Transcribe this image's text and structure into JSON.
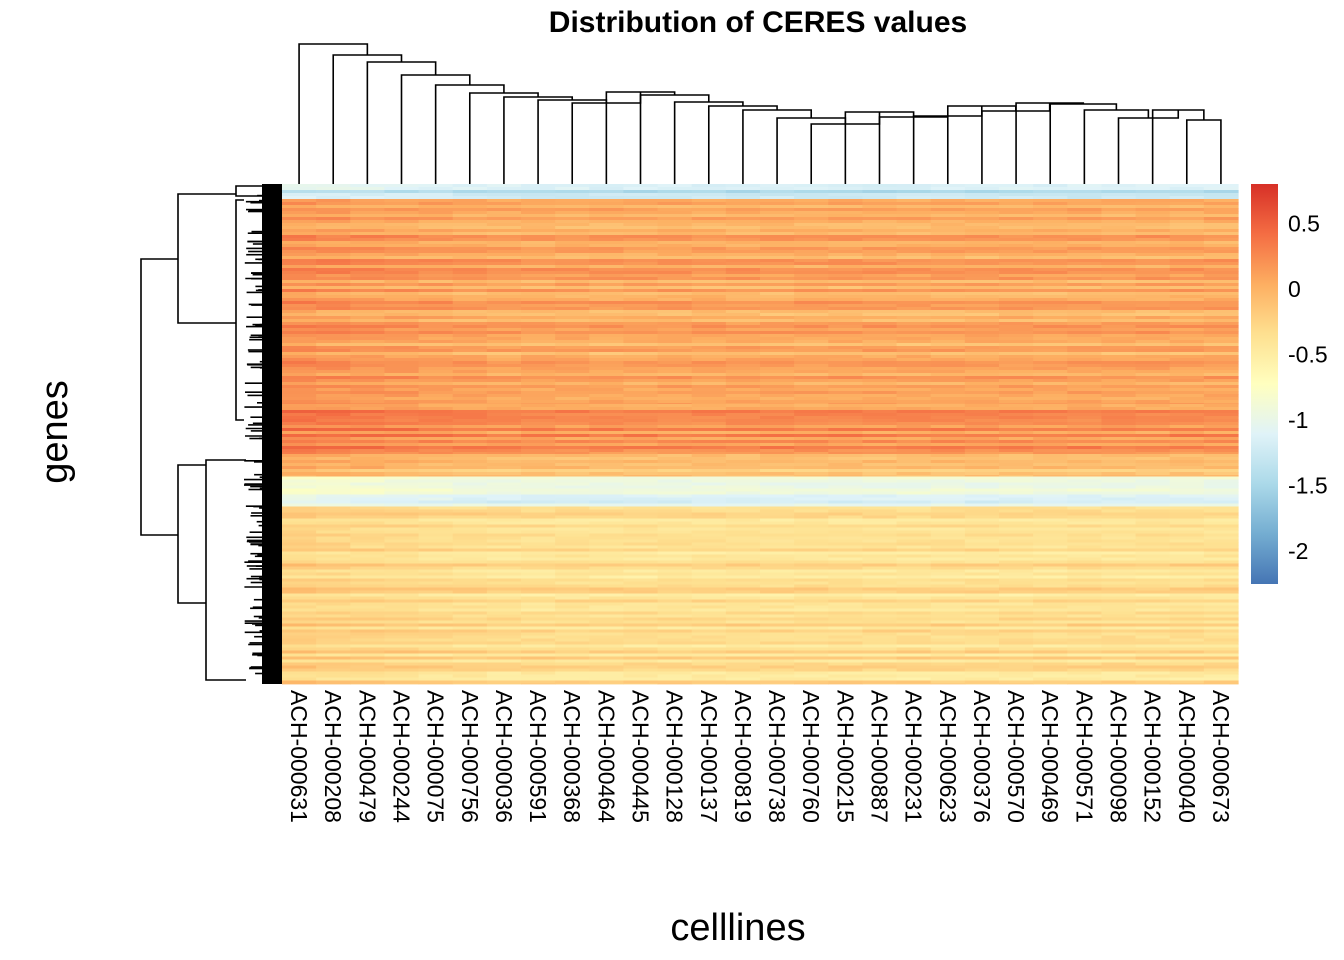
{
  "chart_data": {
    "type": "heatmap",
    "title": "Distribution of CERES values",
    "xlabel": "celllines",
    "ylabel": "genes",
    "columns": [
      "ACH-000631",
      "ACH-000208",
      "ACH-000479",
      "ACH-000244",
      "ACH-000075",
      "ACH-000756",
      "ACH-000036",
      "ACH-000591",
      "ACH-000368",
      "ACH-000464",
      "ACH-000445",
      "ACH-000128",
      "ACH-000137",
      "ACH-000819",
      "ACH-000738",
      "ACH-000760",
      "ACH-000215",
      "ACH-000887",
      "ACH-000231",
      "ACH-000623",
      "ACH-000376",
      "ACH-000570",
      "ACH-000469",
      "ACH-000571",
      "ACH-000098",
      "ACH-000152",
      "ACH-000040",
      "ACH-000673"
    ],
    "row_blocks": [
      {
        "fraction": 0.03,
        "value": -1.3
      },
      {
        "fraction": 0.41,
        "value": 0.05
      },
      {
        "fraction": 0.1,
        "value": 0.2
      },
      {
        "fraction": 0.045,
        "value": -0.15
      },
      {
        "fraction": 0.06,
        "value": -1.05
      },
      {
        "fraction": 0.355,
        "value": -0.35
      }
    ],
    "legend": {
      "ticks": [
        0.5,
        0,
        -0.5,
        -1,
        -1.5,
        -2
      ],
      "tick_labels": [
        "0.5",
        "0",
        "-0.5",
        "-1",
        "-1.5",
        "-2"
      ],
      "range": [
        -2.25,
        0.8
      ],
      "colors": [
        "#4575b4",
        "#74add1",
        "#abd9e9",
        "#e0f3f8",
        "#ffffbf",
        "#fee090",
        "#fdae61",
        "#f46d43",
        "#d73027"
      ],
      "placement": "right"
    },
    "column_dendrogram": true,
    "row_dendrogram": true
  }
}
